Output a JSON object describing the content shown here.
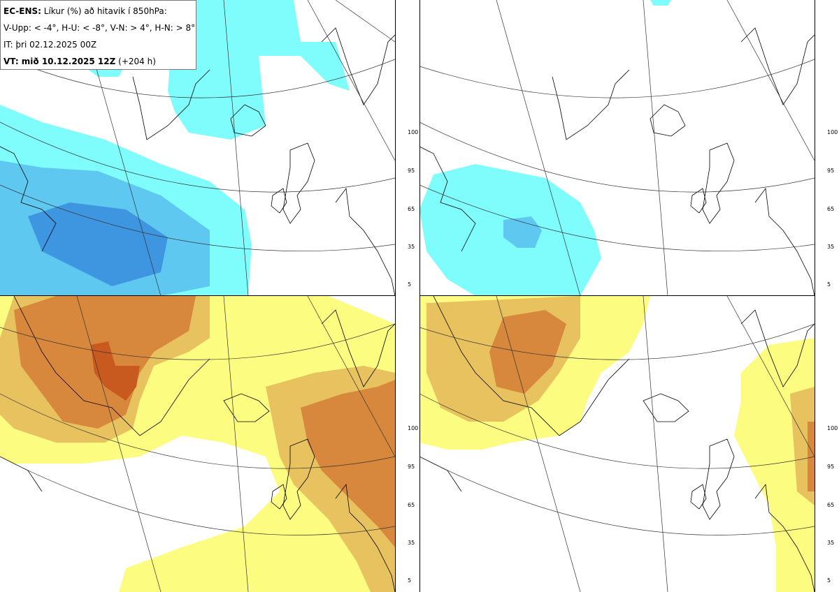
{
  "info": {
    "model": "EC-ENS:",
    "product": "Líkur (%) að hitavik í 850hPa:",
    "thresholds": "V-Upp: < -4°, H-U: < -8°, V-N: > 4°, H-N: > 8°",
    "init_time": "IT: þri 02.12.2025 00Z",
    "valid_label": "VT: mið 10.12.2025 12Z",
    "lead": "(+204 h)"
  },
  "colorbar_ticks": [
    "100",
    "95",
    "65",
    "35",
    "5"
  ],
  "colors": {
    "cold": [
      "#7ffcfc",
      "#5ec8f0",
      "#3e96e0",
      "#2a64cc"
    ],
    "warm": [
      "#fcfc80",
      "#e8c25e",
      "#d8883c",
      "#c85a20"
    ]
  },
  "panels": [
    "V-Upp",
    "H-U",
    "V-N",
    "H-N"
  ]
}
